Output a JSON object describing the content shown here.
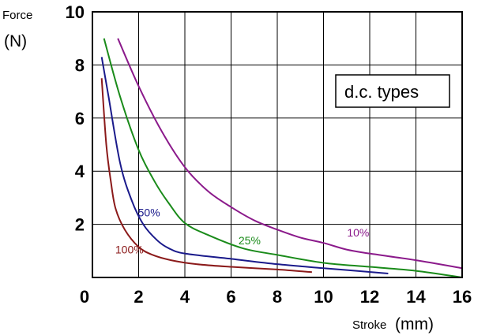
{
  "chart_data": {
    "type": "line",
    "ylabel_top": "Force",
    "ylabel_unit": "(N)",
    "xlabel_word": "Stroke",
    "xlabel_unit": "(mm)",
    "annotation": "d.c. types",
    "xlim": [
      0,
      16
    ],
    "ylim": [
      0,
      10
    ],
    "x_ticks": [
      "0",
      "2",
      "4",
      "6",
      "8",
      "10",
      "12",
      "14",
      "16"
    ],
    "y_ticks": [
      "2",
      "4",
      "6",
      "8",
      "10"
    ],
    "grid": true,
    "series": [
      {
        "name": "100%",
        "color": "#8b1a1a",
        "points": [
          [
            0.4,
            7.5
          ],
          [
            0.6,
            5.0
          ],
          [
            0.8,
            3.6
          ],
          [
            1.0,
            2.6
          ],
          [
            1.4,
            1.8
          ],
          [
            2.0,
            1.15
          ],
          [
            2.6,
            0.85
          ],
          [
            3.4,
            0.65
          ],
          [
            4.5,
            0.5
          ],
          [
            6.0,
            0.4
          ],
          [
            8.0,
            0.3
          ],
          [
            9.5,
            0.2
          ]
        ]
      },
      {
        "name": "50%",
        "color": "#1a1a8b",
        "points": [
          [
            0.4,
            8.3
          ],
          [
            0.7,
            6.8
          ],
          [
            1.2,
            4.3
          ],
          [
            1.7,
            2.9
          ],
          [
            2.2,
            2.0
          ],
          [
            2.8,
            1.4
          ],
          [
            3.3,
            1.1
          ],
          [
            4.0,
            0.9
          ],
          [
            6.0,
            0.7
          ],
          [
            8.0,
            0.5
          ],
          [
            10.0,
            0.35
          ],
          [
            12.8,
            0.15
          ]
        ]
      },
      {
        "name": "25%",
        "color": "#1a8b1a",
        "points": [
          [
            0.5,
            9.0
          ],
          [
            1.2,
            6.8
          ],
          [
            2.0,
            4.8
          ],
          [
            2.7,
            3.6
          ],
          [
            3.3,
            2.8
          ],
          [
            4.0,
            2.05
          ],
          [
            5.0,
            1.6
          ],
          [
            6.5,
            1.1
          ],
          [
            8.0,
            0.85
          ],
          [
            10.0,
            0.55
          ],
          [
            12.0,
            0.4
          ],
          [
            14.0,
            0.25
          ],
          [
            16.0,
            0.0
          ]
        ]
      },
      {
        "name": "10%",
        "color": "#8b1a8b",
        "points": [
          [
            1.1,
            9.0
          ],
          [
            2.0,
            7.2
          ],
          [
            3.0,
            5.5
          ],
          [
            4.0,
            4.15
          ],
          [
            5.0,
            3.25
          ],
          [
            6.0,
            2.65
          ],
          [
            7.0,
            2.15
          ],
          [
            8.0,
            1.8
          ],
          [
            9.0,
            1.5
          ],
          [
            10.0,
            1.3
          ],
          [
            11.0,
            1.05
          ],
          [
            12.0,
            0.9
          ],
          [
            14.0,
            0.65
          ],
          [
            16.0,
            0.35
          ]
        ]
      }
    ]
  }
}
